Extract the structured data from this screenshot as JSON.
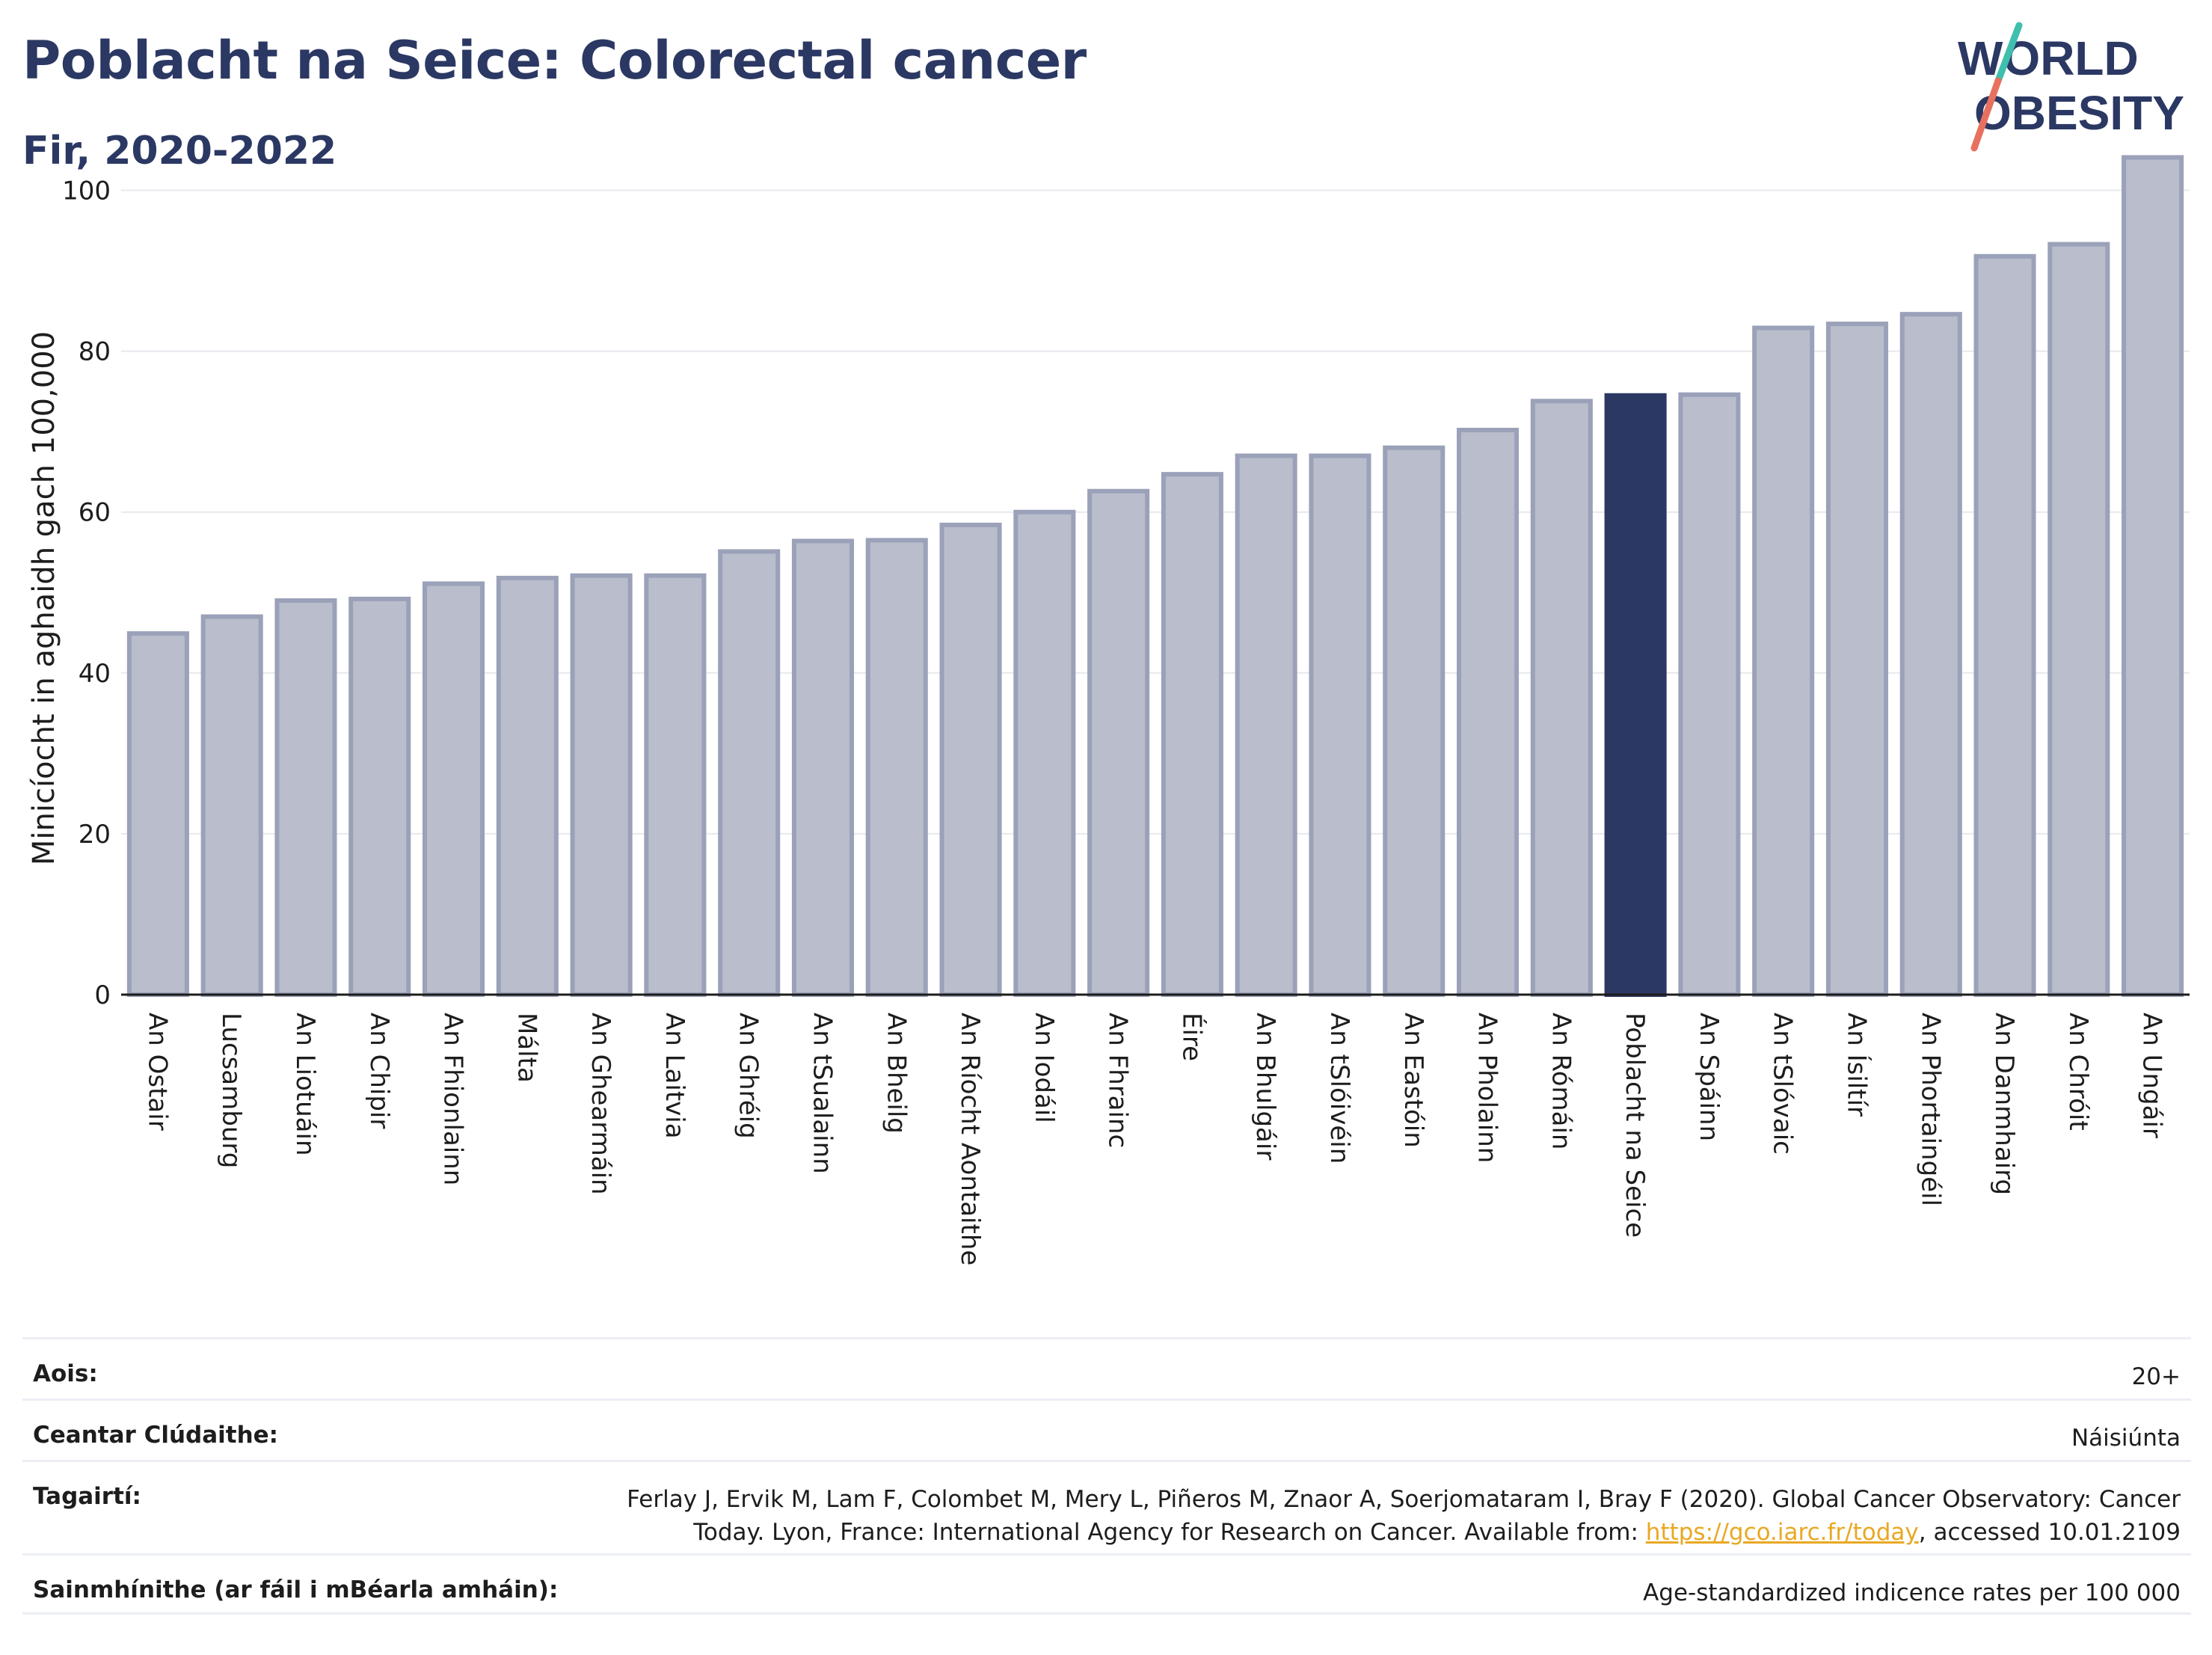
{
  "header": {
    "title": "Poblacht na Seice: Colorectal cancer",
    "subtitle": "Fir, 2020-2022"
  },
  "logo": {
    "line1": "WORLD",
    "line2": "OBESITY",
    "colors": {
      "text": "#2b3863",
      "slash_top": "#3fbfad",
      "slash_bottom": "#e8705f"
    }
  },
  "chart_data": {
    "type": "bar",
    "ylabel": "Minicíocht in aghaidh gach 100,000",
    "ylim": [
      0,
      106
    ],
    "yticks": [
      0,
      20,
      40,
      60,
      80,
      100
    ],
    "grid": true,
    "highlight": "Poblacht na Seice",
    "colors": {
      "bar": "#b9bdcc",
      "bar_edge": "#9aa1b8",
      "highlight": "#2b3863"
    },
    "categories": [
      "An Ostair",
      "Lucsamburg",
      "An Liotuáin",
      "An Chipir",
      "An Fhionlainn",
      "Málta",
      "An Ghearmáin",
      "An Laitvia",
      "An Ghréig",
      "An tSualainn",
      "An Bheilg",
      "An Ríocht Aontaithe",
      "An Iodáil",
      "An Fhrainc",
      "Éire",
      "An Bhulgáir",
      "An tSlóivéin",
      "An Eastóin",
      "An Pholainn",
      "An Rómáin",
      "Poblacht na Seice",
      "An Spáinn",
      "An tSlóvaic",
      "An Ísiltír",
      "An Phortaingéil",
      "An Danmhairg",
      "An Chróit",
      "An Ungáir"
    ],
    "values": [
      44.9,
      47.0,
      49.0,
      49.2,
      51.1,
      51.8,
      52.1,
      52.1,
      55.1,
      56.4,
      56.5,
      58.4,
      60.0,
      62.6,
      64.7,
      67.0,
      67.0,
      68.0,
      70.2,
      73.8,
      74.5,
      74.6,
      82.9,
      83.4,
      84.6,
      91.8,
      93.3,
      104.1
    ]
  },
  "info": {
    "rows": [
      {
        "key": "Aois:",
        "value": "20+"
      },
      {
        "key": "Ceantar Clúdaithe:",
        "value": "Náisiúnta"
      },
      {
        "key": "Tagairtí:",
        "value_line1": "Ferlay J, Ervik M, Lam F, Colombet M, Mery L, Piñeros M, Znaor A, Soerjomataram I, Bray F (2020). Global Cancer Observatory: Cancer",
        "value_line2_pre": "Today. Lyon, France: International Agency for Research on Cancer. Available from: ",
        "value_link": "https://gco.iarc.fr/today",
        "value_line2_post": ", accessed 10.01.2109"
      },
      {
        "key": "Sainmhínithe (ar fáil i mBéarla amháin):",
        "value": "Age-standardized indicence rates per 100 000"
      }
    ]
  }
}
